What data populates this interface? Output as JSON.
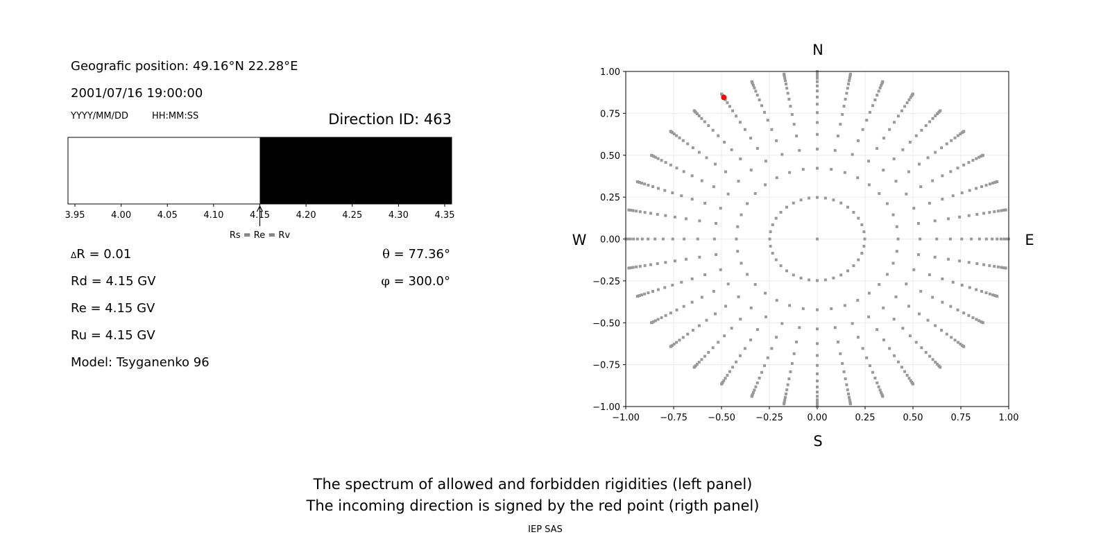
{
  "info": {
    "position": "Geografic position: 49.16°N 22.28°E",
    "datetime": "2001/07/16 19:00:00",
    "date_format": "YYYY/MM/DD",
    "time_format": "HH:MM:SS",
    "direction_id": "Direction ID: 463",
    "delta_r_symbol": "Δ",
    "delta_r": "R = 0.01",
    "rd": "Rd = 4.15 GV",
    "re": "Re = 4.15 GV",
    "ru": "Ru = 4.15 GV",
    "model": "Model: Tsyganenko 96",
    "theta_symbol": "θ",
    "theta": " = 77.36°",
    "phi_symbol": "φ",
    "phi": " = 300.0°"
  },
  "footer": {
    "line1": "The spectrum of allowed and forbidden rigidities (left panel)",
    "line2": "The incoming direction is signed by the red point (rigth panel)",
    "credit": "IEP SAS"
  },
  "chart_data": [
    {
      "type": "bar",
      "xlim": [
        3.9425,
        4.3575
      ],
      "xticks": [
        "3.95",
        "4.00",
        "4.05",
        "4.10",
        "4.15",
        "4.20",
        "4.25",
        "4.30",
        "4.35"
      ],
      "segments": [
        {
          "from": 3.9425,
          "to": 4.15,
          "state": "allowed",
          "color": "#ffffff"
        },
        {
          "from": 4.15,
          "to": 4.3575,
          "state": "forbidden",
          "color": "#000000"
        }
      ],
      "annotation": {
        "x": 4.15,
        "text": "Rs = Re = Rv"
      }
    },
    {
      "type": "scatter",
      "xlim": [
        -1,
        1
      ],
      "ylim": [
        -1,
        1
      ],
      "grid": true,
      "xticks": [
        "−1.00",
        "−0.75",
        "−0.50",
        "−0.25",
        "0.00",
        "0.25",
        "0.50",
        "0.75",
        "1.00"
      ],
      "yticks": [
        "−1.00",
        "−0.75",
        "−0.50",
        "−0.25",
        "0.00",
        "0.25",
        "0.50",
        "0.75",
        "1.00"
      ],
      "compass": {
        "n": "N",
        "s": "S",
        "e": "E",
        "w": "W"
      },
      "point_color": "#999999",
      "highlight_color": "#ff0000",
      "zenith_deg": [
        0,
        14.36,
        24.98,
        32.47,
        38.62,
        44.05,
        48.99,
        53.58,
        57.91,
        62.05,
        66.03,
        69.89,
        73.67,
        77.36,
        81.01,
        84.62,
        88.21
      ],
      "azimuth_deg": [
        0,
        10,
        20,
        30,
        40,
        50,
        60,
        70,
        80,
        90,
        100,
        110,
        120,
        130,
        140,
        150,
        160,
        170,
        180,
        190,
        200,
        210,
        220,
        230,
        240,
        250,
        260,
        270,
        280,
        290,
        300,
        310,
        320,
        330,
        340,
        350
      ],
      "highlight": {
        "zenith_deg": 77.36,
        "azimuth_deg": 300.0
      }
    }
  ]
}
